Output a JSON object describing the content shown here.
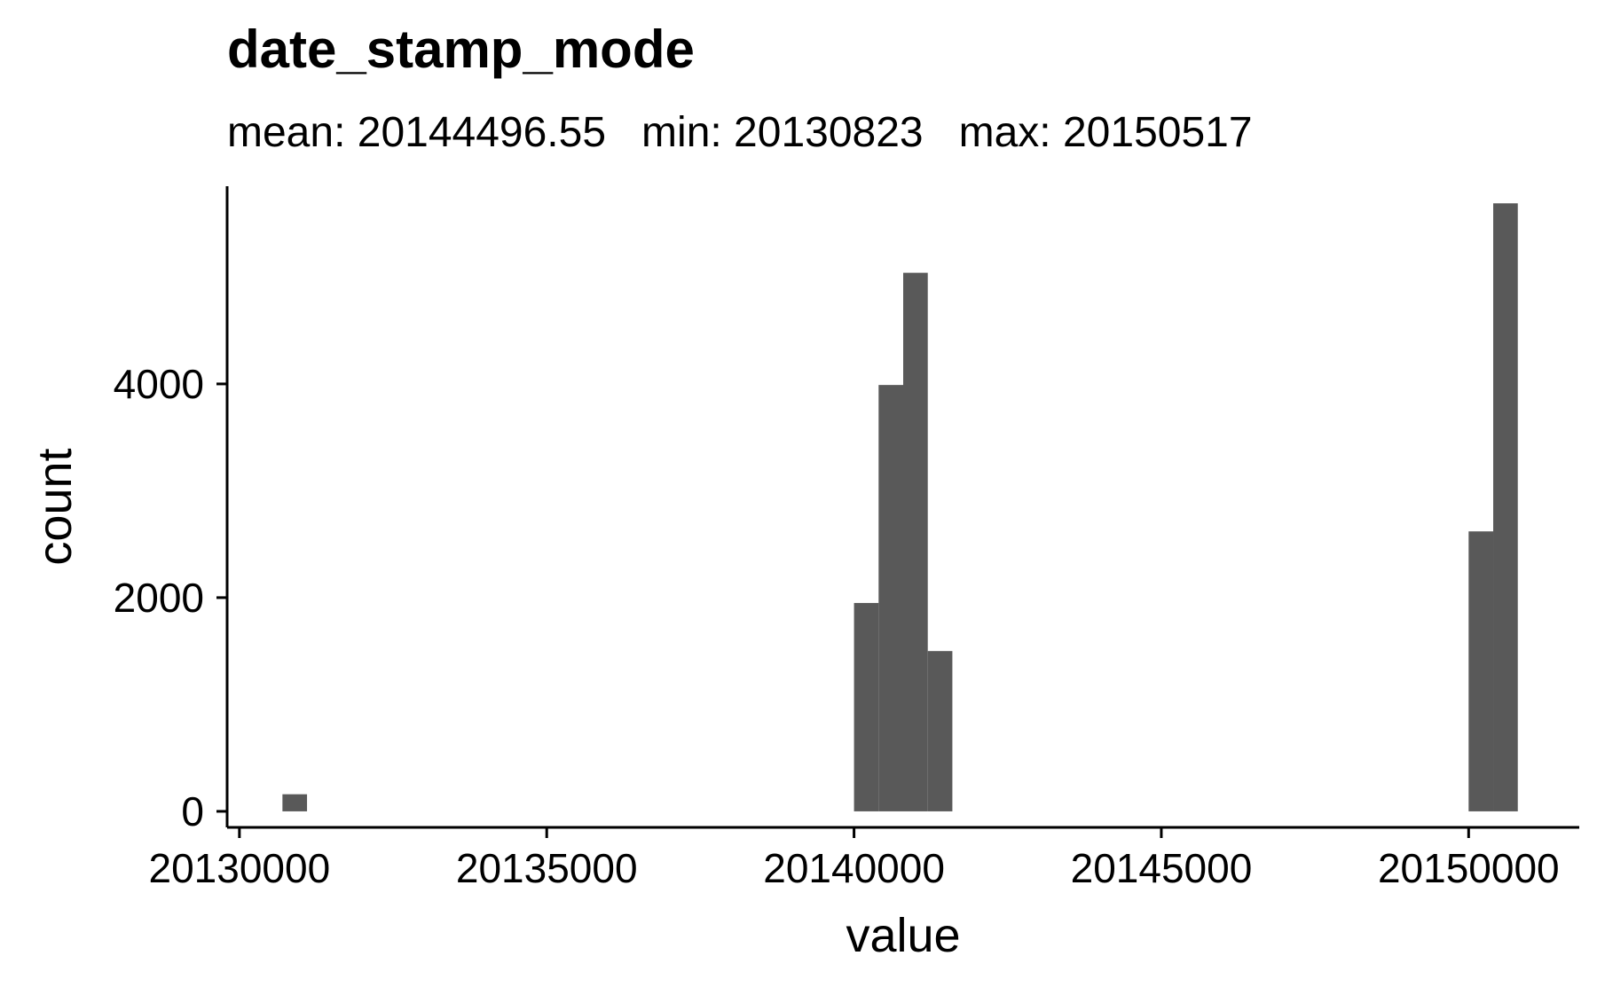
{
  "chart_data": {
    "type": "histogram",
    "title": "date_stamp_mode",
    "subtitle": "mean: 20144496.55   min: 20130823   max: 20150517",
    "xlabel": "value",
    "ylabel": "count",
    "xlim": [
      20129800,
      20151800
    ],
    "ylim": [
      -150,
      5850
    ],
    "x_ticks": [
      20130000,
      20135000,
      20140000,
      20145000,
      20150000
    ],
    "y_ticks": [
      0,
      2000,
      4000
    ],
    "bin_width": 400,
    "bars": [
      {
        "x0": 20130700,
        "x1": 20131100,
        "count": 160
      },
      {
        "x0": 20140000,
        "x1": 20140400,
        "count": 1950
      },
      {
        "x0": 20140400,
        "x1": 20140800,
        "count": 3990
      },
      {
        "x0": 20140800,
        "x1": 20141200,
        "count": 5040
      },
      {
        "x0": 20141200,
        "x1": 20141600,
        "count": 1500
      },
      {
        "x0": 20150000,
        "x1": 20150400,
        "count": 2620
      },
      {
        "x0": 20150400,
        "x1": 20150800,
        "count": 5690
      }
    ],
    "bar_color": "#595959",
    "grid": false,
    "legend": "none"
  }
}
